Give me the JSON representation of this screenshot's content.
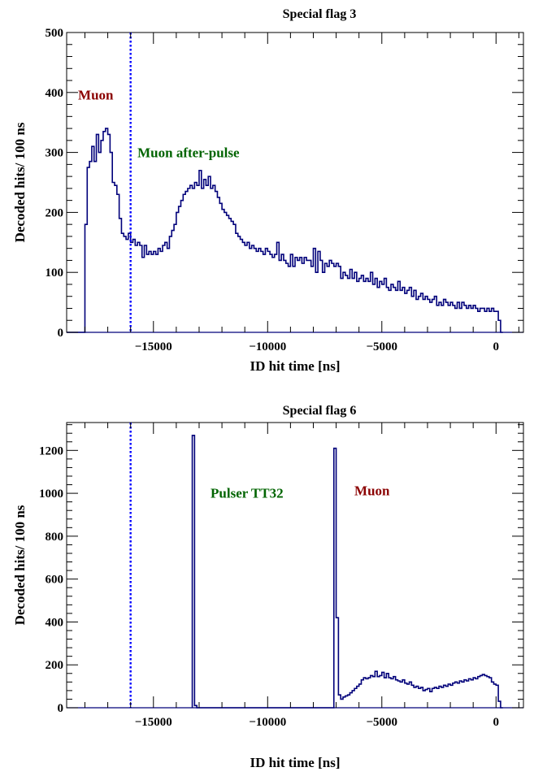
{
  "chart_data": [
    {
      "type": "histogram",
      "title": "Special flag 3",
      "xlabel": "ID hit time [ns]",
      "ylabel": "Decoded hits/ 100 ns",
      "xlim": [
        -18800,
        1200
      ],
      "ylim": [
        0,
        500
      ],
      "xticks": [
        -15000,
        -10000,
        -5000,
        0
      ],
      "xtick_labels": [
        "−15000",
        "−10000",
        "−5000",
        "0"
      ],
      "yticks": [
        0,
        100,
        200,
        300,
        400,
        500
      ],
      "ytick_labels": [
        "0",
        "100",
        "200",
        "300",
        "400",
        "500"
      ],
      "grid": false,
      "line_color": "#00007a",
      "marker_line": {
        "x": -16000,
        "color": "#0000ff",
        "style": "dotted"
      },
      "annotations": [
        {
          "text": "Muon",
          "x": -18300,
          "y": 388,
          "color": "#8b0000"
        },
        {
          "text": "Muon after-pulse",
          "x": -15700,
          "y": 292,
          "color": "#006400"
        }
      ],
      "series": [
        {
          "x": [
            -18800,
            -18000,
            -17900,
            -17800,
            -17700,
            -17600,
            -17500,
            -17400,
            -17300,
            -17200,
            -17100,
            -17000,
            -16900,
            -16800,
            -16700,
            -16600,
            -16500,
            -16400,
            -16300,
            -16200,
            -16100,
            -16000,
            -15900,
            -15800,
            -15700,
            -15600,
            -15500,
            -15400,
            -15300,
            -15200,
            -15100,
            -15000,
            -14900,
            -14800,
            -14700,
            -14600,
            -14500,
            -14400,
            -14300,
            -14200,
            -14100,
            -14000,
            -13900,
            -13800,
            -13700,
            -13600,
            -13500,
            -13400,
            -13300,
            -13200,
            -13100,
            -13000,
            -12900,
            -12800,
            -12700,
            -12600,
            -12500,
            -12400,
            -12300,
            -12200,
            -12100,
            -12000,
            -11900,
            -11800,
            -11700,
            -11600,
            -11500,
            -11400,
            -11300,
            -11200,
            -11100,
            -11000,
            -10900,
            -10800,
            -10700,
            -10600,
            -10500,
            -10400,
            -10300,
            -10200,
            -10100,
            -10000,
            -9900,
            -9800,
            -9700,
            -9600,
            -9500,
            -9400,
            -9300,
            -9200,
            -9100,
            -9000,
            -8900,
            -8800,
            -8700,
            -8600,
            -8500,
            -8400,
            -8300,
            -8200,
            -8100,
            -8000,
            -7900,
            -7800,
            -7700,
            -7600,
            -7500,
            -7400,
            -7300,
            -7200,
            -7100,
            -7000,
            -6900,
            -6800,
            -6700,
            -6600,
            -6500,
            -6400,
            -6300,
            -6200,
            -6100,
            -6000,
            -5900,
            -5800,
            -5700,
            -5600,
            -5500,
            -5400,
            -5300,
            -5200,
            -5100,
            -5000,
            -4900,
            -4800,
            -4700,
            -4600,
            -4500,
            -4400,
            -4300,
            -4200,
            -4100,
            -4000,
            -3900,
            -3800,
            -3700,
            -3600,
            -3500,
            -3400,
            -3300,
            -3200,
            -3100,
            -3000,
            -2900,
            -2800,
            -2700,
            -2600,
            -2500,
            -2400,
            -2300,
            -2200,
            -2100,
            -2000,
            -1900,
            -1800,
            -1700,
            -1600,
            -1500,
            -1400,
            -1300,
            -1200,
            -1100,
            -1000,
            -900,
            -800,
            -700,
            -600,
            -500,
            -400,
            -300,
            -200,
            -100,
            0,
            100,
            200
          ],
          "y": [
            0,
            180,
            275,
            285,
            310,
            285,
            330,
            300,
            320,
            335,
            340,
            330,
            300,
            250,
            245,
            230,
            190,
            165,
            160,
            155,
            165,
            150,
            155,
            145,
            150,
            145,
            125,
            145,
            130,
            135,
            130,
            135,
            130,
            140,
            135,
            145,
            150,
            140,
            160,
            170,
            180,
            200,
            210,
            220,
            230,
            235,
            240,
            245,
            240,
            250,
            245,
            270,
            240,
            255,
            245,
            260,
            240,
            245,
            235,
            225,
            215,
            205,
            200,
            195,
            190,
            185,
            180,
            165,
            160,
            155,
            150,
            145,
            150,
            140,
            145,
            140,
            135,
            140,
            135,
            130,
            140,
            135,
            130,
            125,
            130,
            150,
            120,
            130,
            120,
            115,
            110,
            130,
            110,
            125,
            120,
            125,
            115,
            125,
            120,
            120,
            110,
            140,
            100,
            135,
            120,
            100,
            115,
            110,
            120,
            115,
            110,
            115,
            110,
            90,
            100,
            95,
            90,
            105,
            90,
            100,
            85,
            90,
            95,
            85,
            90,
            85,
            100,
            80,
            90,
            75,
            85,
            80,
            90,
            75,
            70,
            80,
            75,
            70,
            85,
            70,
            75,
            65,
            70,
            75,
            60,
            70,
            55,
            60,
            65,
            55,
            60,
            55,
            50,
            55,
            60,
            45,
            50,
            45,
            55,
            50,
            45,
            50,
            45,
            40,
            50,
            40,
            50,
            45,
            40,
            45,
            40,
            45,
            40,
            35,
            40,
            40,
            35,
            40,
            35,
            40,
            35,
            35,
            20,
            0
          ]
        }
      ]
    },
    {
      "type": "histogram",
      "title": "Special flag 6",
      "xlabel": "ID hit time [ns]",
      "ylabel": "Decoded hits/ 100 ns",
      "xlim": [
        -18800,
        1200
      ],
      "ylim": [
        0,
        1330
      ],
      "xticks": [
        -15000,
        -10000,
        -5000,
        0
      ],
      "xtick_labels": [
        "−15000",
        "−10000",
        "−5000",
        "0"
      ],
      "yticks": [
        0,
        200,
        400,
        600,
        800,
        1000,
        1200
      ],
      "ytick_labels": [
        "0",
        "200",
        "400",
        "600",
        "800",
        "1000",
        "1200"
      ],
      "grid": false,
      "line_color": "#00007a",
      "marker_line": {
        "x": -16000,
        "color": "#0000ff",
        "style": "dotted"
      },
      "annotations": [
        {
          "text": "Pulser TT32",
          "x": -12500,
          "y": 980,
          "color": "#006400"
        },
        {
          "text": "Muon",
          "x": -6200,
          "y": 990,
          "color": "#8b0000"
        }
      ],
      "series": [
        {
          "x": [
            -13300,
            -13200,
            -13100,
            -13000,
            -12900,
            -7100,
            -7000,
            -6900,
            -6800,
            -6700,
            -6600,
            -6500,
            -6400,
            -6300,
            -6200,
            -6100,
            -6000,
            -5900,
            -5800,
            -5700,
            -5600,
            -5500,
            -5400,
            -5300,
            -5200,
            -5100,
            -5000,
            -4900,
            -4800,
            -4700,
            -4600,
            -4500,
            -4400,
            -4300,
            -4200,
            -4100,
            -4000,
            -3900,
            -3800,
            -3700,
            -3600,
            -3500,
            -3400,
            -3300,
            -3200,
            -3100,
            -3000,
            -2900,
            -2800,
            -2700,
            -2600,
            -2500,
            -2400,
            -2300,
            -2200,
            -2100,
            -2000,
            -1900,
            -1800,
            -1700,
            -1600,
            -1500,
            -1400,
            -1300,
            -1200,
            -1100,
            -1000,
            -900,
            -800,
            -700,
            -600,
            -500,
            -400,
            -300,
            -200,
            -100,
            0,
            100,
            200
          ],
          "y": [
            1270,
            10,
            0,
            0,
            0,
            1210,
            420,
            60,
            40,
            50,
            55,
            60,
            70,
            80,
            90,
            100,
            110,
            130,
            140,
            135,
            140,
            150,
            145,
            170,
            145,
            150,
            165,
            140,
            160,
            140,
            135,
            145,
            130,
            125,
            120,
            130,
            115,
            110,
            120,
            105,
            95,
            100,
            90,
            95,
            80,
            85,
            90,
            75,
            90,
            95,
            90,
            100,
            95,
            105,
            100,
            110,
            105,
            115,
            120,
            115,
            125,
            120,
            130,
            125,
            135,
            130,
            140,
            135,
            145,
            150,
            155,
            150,
            145,
            140,
            120,
            110,
            105,
            30,
            0
          ]
        }
      ]
    }
  ]
}
